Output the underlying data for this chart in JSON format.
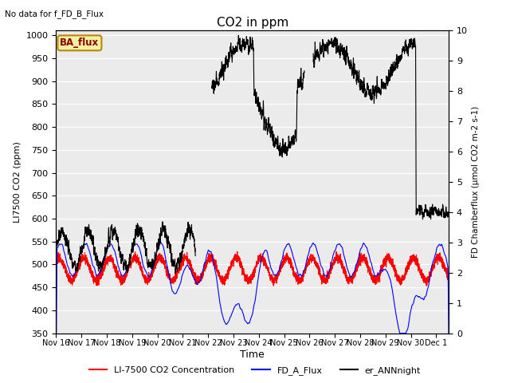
{
  "title": "CO2 in ppm",
  "top_left_text": "No data for f_FD_B_Flux",
  "annotation_text": "BA_flux",
  "xlabel": "Time",
  "ylabel_left": "LI7500 CO2 (ppm)",
  "ylabel_right": "FD Chamberflux (μmol CO2 m-2 s-1)",
  "ylim_left": [
    350,
    1010
  ],
  "ylim_right": [
    0.0,
    10.0
  ],
  "yticks_left": [
    350,
    400,
    450,
    500,
    550,
    600,
    650,
    700,
    750,
    800,
    850,
    900,
    950,
    1000
  ],
  "yticks_right": [
    0.0,
    1.0,
    2.0,
    3.0,
    4.0,
    5.0,
    6.0,
    7.0,
    8.0,
    9.0,
    10.0
  ],
  "xtick_labels": [
    "Nov 16",
    "Nov 17",
    "Nov 18",
    "Nov 19",
    "Nov 20",
    "Nov 21",
    "Nov 22",
    "Nov 23",
    "Nov 24",
    "Nov 25",
    "Nov 26",
    "Nov 27",
    "Nov 28",
    "Nov 29",
    "Nov 30",
    "Dec 1"
  ],
  "background_color": "#ebebeb",
  "legend_entries": [
    "LI-7500 CO2 Concentration",
    "FD_A_Flux",
    "er_ANNnight"
  ],
  "legend_colors": [
    "red",
    "blue",
    "black"
  ]
}
